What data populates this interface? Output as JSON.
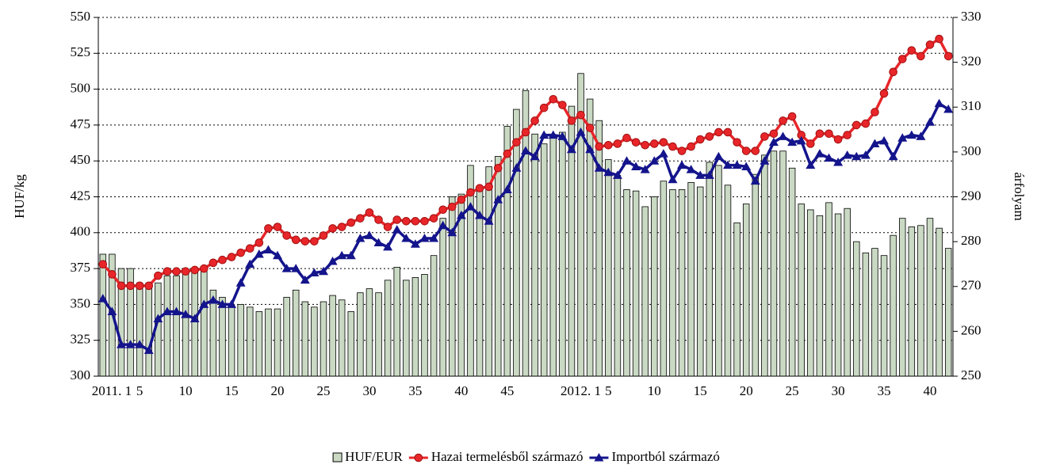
{
  "chart_data": {
    "type": "combo",
    "y_label": "HUF/kg",
    "y2_label": "árfolyam",
    "categories": [
      "2011. 1",
      null,
      null,
      null,
      "5",
      null,
      null,
      null,
      null,
      "10",
      null,
      null,
      null,
      null,
      "15",
      null,
      null,
      null,
      null,
      "20",
      null,
      null,
      null,
      null,
      "25",
      null,
      null,
      null,
      null,
      "30",
      null,
      null,
      null,
      null,
      "35",
      null,
      null,
      null,
      null,
      "40",
      null,
      null,
      null,
      null,
      "45",
      null,
      null,
      null,
      null,
      null,
      null,
      "2012. 1",
      null,
      null,
      null,
      "5",
      null,
      null,
      null,
      null,
      "10",
      null,
      null,
      null,
      null,
      "15",
      null,
      null,
      null,
      null,
      "20",
      null,
      null,
      null,
      null,
      "25",
      null,
      null,
      null,
      null,
      "30",
      null,
      null,
      null,
      null,
      "35",
      null,
      null,
      null,
      null,
      "40",
      null,
      null
    ],
    "ylim": [
      300,
      550
    ],
    "yticks": [
      300,
      325,
      350,
      375,
      400,
      425,
      450,
      475,
      500,
      525,
      550
    ],
    "y2lim": [
      250,
      330
    ],
    "y2ticks": [
      250,
      260,
      270,
      280,
      290,
      300,
      310,
      320,
      330
    ],
    "grid": true,
    "legend": "bottom",
    "series": [
      {
        "name": "HUF/EUR",
        "type": "bar",
        "axis": "y2",
        "color": "#c9d9c3",
        "values": [
          277.2,
          277.2,
          274,
          274,
          270.8,
          270.8,
          270.8,
          272.4,
          272.4,
          273,
          274,
          273.4,
          269.2,
          267.6,
          265.4,
          266,
          265.4,
          264.4,
          265,
          265,
          267.6,
          269.2,
          266.6,
          265.4,
          266.6,
          268,
          267,
          264.4,
          268.6,
          269.5,
          268.6,
          271.4,
          274.3,
          271.4,
          272,
          272.7,
          276.9,
          285.2,
          290,
          290.6,
          297,
          292.2,
          296.7,
          299,
          305.7,
          309.5,
          313.7,
          304,
          301.8,
          303.8,
          304.4,
          310.2,
          317.5,
          311.8,
          307,
          298.3,
          294.8,
          291.6,
          291.3,
          287.8,
          290,
          293.5,
          291.6,
          291.6,
          293.2,
          292.2,
          297.7,
          297,
          292.6,
          284.2,
          288.4,
          295,
          299.3,
          300.2,
          300.2,
          296.4,
          288.4,
          287.1,
          285.8,
          288.7,
          286.2,
          287.4,
          280,
          277.5,
          278.5,
          276.9,
          281.4,
          285.2,
          283.3,
          283.6,
          285.2,
          283,
          278.5
        ]
      },
      {
        "name": "Hazai termelésből származó",
        "type": "line",
        "marker": "circle",
        "color": "#e8262a",
        "values": [
          378,
          371,
          363,
          363,
          363,
          363,
          370,
          373,
          373,
          373,
          374,
          375,
          379,
          381,
          383,
          386,
          389,
          393,
          403,
          404,
          398,
          395,
          394,
          394,
          398,
          403,
          404,
          407,
          410,
          414,
          409,
          404,
          409,
          408,
          408,
          408,
          410,
          416,
          418,
          423,
          428,
          431,
          432,
          445,
          455,
          463,
          470,
          478,
          487,
          493,
          489,
          478,
          482,
          473,
          460,
          461,
          462,
          466,
          463,
          461,
          462,
          463,
          460,
          457,
          460,
          465,
          467,
          470,
          470,
          463,
          457,
          457,
          467,
          469,
          478,
          481,
          468,
          462,
          469,
          469,
          465,
          468,
          475,
          476,
          484,
          497,
          512,
          521,
          527,
          523,
          531,
          535,
          523
        ]
      },
      {
        "name": "Importból származó",
        "type": "line",
        "marker": "triangle",
        "color": "#14148c",
        "values": [
          354,
          345,
          322,
          322,
          322,
          318,
          340,
          345,
          345,
          343,
          340,
          350,
          353,
          350,
          350,
          365,
          378,
          385,
          388,
          384,
          375,
          375,
          367,
          372,
          373,
          380,
          384,
          384,
          396,
          398,
          393,
          390,
          402,
          396,
          392,
          396,
          396,
          405,
          400,
          412,
          418,
          412,
          408,
          423,
          430,
          445,
          457,
          453,
          468,
          468,
          467,
          458,
          470,
          458,
          445,
          442,
          440,
          450,
          446,
          444,
          450,
          455,
          437,
          447,
          444,
          440,
          440,
          453,
          447,
          447,
          446,
          436,
          450,
          463,
          467,
          463,
          464,
          447,
          455,
          452,
          449,
          454,
          453,
          454,
          462,
          464,
          453,
          466,
          468,
          467,
          477,
          490,
          486
        ]
      }
    ]
  }
}
